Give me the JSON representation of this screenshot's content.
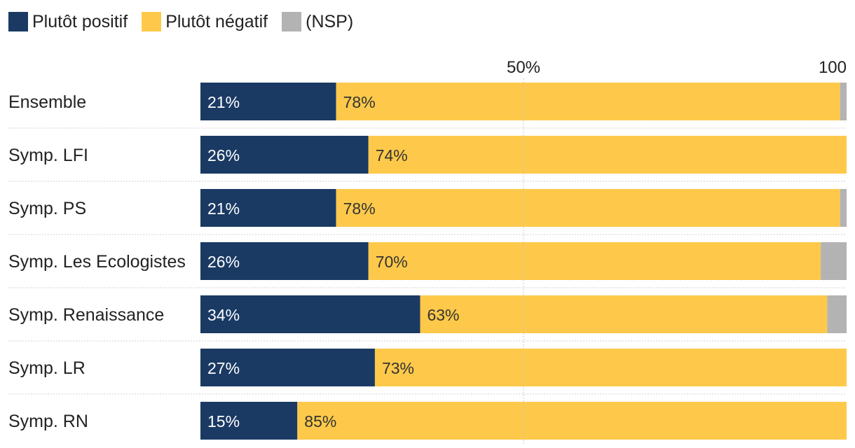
{
  "chart_data": {
    "type": "bar",
    "orientation": "horizontal",
    "stacked": true,
    "title": "",
    "xlabel": "",
    "ylabel": "",
    "xlim": [
      0,
      100
    ],
    "x_ticks": [
      {
        "value": 50,
        "label": "50%"
      },
      {
        "value": 100,
        "label": "100"
      }
    ],
    "categories": [
      "Ensemble",
      "Symp. LFI",
      "Symp. PS",
      "Symp. Les Ecologistes",
      "Symp. Renaissance",
      "Symp. LR",
      "Symp. RN"
    ],
    "series": [
      {
        "name": "Plutôt positif",
        "color": "#1a3a64",
        "label_color": "#ffffff",
        "values": [
          21,
          26,
          21,
          26,
          34,
          27,
          15
        ],
        "labels": [
          "21%",
          "26%",
          "21%",
          "26%",
          "34%",
          "27%",
          "15%"
        ]
      },
      {
        "name": "Plutôt négatif",
        "color": "#fec94a",
        "label_color": "#333333",
        "values": [
          78,
          74,
          78,
          70,
          63,
          73,
          85
        ],
        "labels": [
          "78%",
          "74%",
          "78%",
          "70%",
          "63%",
          "73%",
          "85%"
        ]
      },
      {
        "name": "(NSP)",
        "color": "#b3b3b3",
        "label_color": "#333333",
        "values": [
          1,
          0,
          1,
          4,
          3,
          0,
          0
        ],
        "labels": [
          "",
          "",
          "",
          "",
          "",
          "",
          ""
        ]
      }
    ],
    "legend_position": "top-left"
  }
}
